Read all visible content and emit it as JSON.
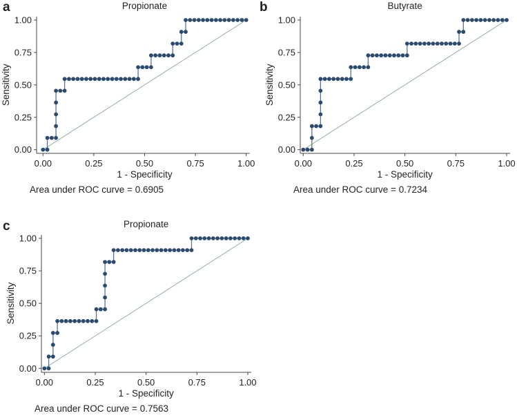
{
  "chart_data": [
    {
      "panel": "a",
      "type": "line",
      "title": "Propionate",
      "xlabel": "1 - Specificity",
      "ylabel": "Sensitivity",
      "xlim": [
        0,
        1
      ],
      "ylim": [
        0,
        1
      ],
      "xticks": [
        "0.00",
        "0.25",
        "0.50",
        "0.75",
        "1.00"
      ],
      "yticks": [
        "0.00",
        "0.25",
        "0.50",
        "0.75",
        "1.00"
      ],
      "annotation": "Area under ROC curve = 0.6905",
      "n_negative": 47,
      "n_positive": 11,
      "points_counts_fp_tp": [
        [
          0,
          0
        ],
        [
          1,
          0
        ],
        [
          1,
          1
        ],
        [
          2,
          1
        ],
        [
          3,
          1
        ],
        [
          3,
          2
        ],
        [
          3,
          3
        ],
        [
          3,
          4
        ],
        [
          3,
          5
        ],
        [
          4,
          5
        ],
        [
          5,
          5
        ],
        [
          5,
          6
        ],
        [
          6,
          6
        ],
        [
          7,
          6
        ],
        [
          8,
          6
        ],
        [
          9,
          6
        ],
        [
          10,
          6
        ],
        [
          11,
          6
        ],
        [
          12,
          6
        ],
        [
          13,
          6
        ],
        [
          14,
          6
        ],
        [
          15,
          6
        ],
        [
          16,
          6
        ],
        [
          17,
          6
        ],
        [
          18,
          6
        ],
        [
          19,
          6
        ],
        [
          20,
          6
        ],
        [
          21,
          6
        ],
        [
          22,
          6
        ],
        [
          22,
          7
        ],
        [
          23,
          7
        ],
        [
          24,
          7
        ],
        [
          25,
          7
        ],
        [
          25,
          8
        ],
        [
          26,
          8
        ],
        [
          27,
          8
        ],
        [
          28,
          8
        ],
        [
          29,
          8
        ],
        [
          30,
          8
        ],
        [
          30,
          9
        ],
        [
          31,
          9
        ],
        [
          32,
          9
        ],
        [
          32,
          10
        ],
        [
          33,
          10
        ],
        [
          33,
          11
        ],
        [
          34,
          11
        ],
        [
          35,
          11
        ],
        [
          36,
          11
        ],
        [
          37,
          11
        ],
        [
          38,
          11
        ],
        [
          39,
          11
        ],
        [
          40,
          11
        ],
        [
          41,
          11
        ],
        [
          42,
          11
        ],
        [
          43,
          11
        ],
        [
          44,
          11
        ],
        [
          45,
          11
        ],
        [
          46,
          11
        ],
        [
          47,
          11
        ]
      ],
      "reference_line": [
        [
          0,
          0
        ],
        [
          1,
          1
        ]
      ]
    },
    {
      "panel": "b",
      "type": "line",
      "title": "Butyrate",
      "xlabel": "1 - Specificity",
      "ylabel": "Sensitivity",
      "xlim": [
        0,
        1
      ],
      "ylim": [
        0,
        1
      ],
      "xticks": [
        "0.00",
        "0.25",
        "0.50",
        "0.75",
        "1.00"
      ],
      "yticks": [
        "0.00",
        "0.25",
        "0.50",
        "0.75",
        "1.00"
      ],
      "annotation": "Area under ROC curve = 0.7234",
      "n_negative": 47,
      "n_positive": 11,
      "points_counts_fp_tp": [
        [
          0,
          0
        ],
        [
          1,
          0
        ],
        [
          2,
          0
        ],
        [
          2,
          1
        ],
        [
          2,
          2
        ],
        [
          3,
          2
        ],
        [
          4,
          2
        ],
        [
          4,
          3
        ],
        [
          4,
          4
        ],
        [
          4,
          5
        ],
        [
          4,
          6
        ],
        [
          5,
          6
        ],
        [
          6,
          6
        ],
        [
          7,
          6
        ],
        [
          8,
          6
        ],
        [
          9,
          6
        ],
        [
          10,
          6
        ],
        [
          11,
          6
        ],
        [
          11,
          7
        ],
        [
          12,
          7
        ],
        [
          13,
          7
        ],
        [
          14,
          7
        ],
        [
          15,
          7
        ],
        [
          15,
          8
        ],
        [
          16,
          8
        ],
        [
          17,
          8
        ],
        [
          18,
          8
        ],
        [
          19,
          8
        ],
        [
          20,
          8
        ],
        [
          21,
          8
        ],
        [
          22,
          8
        ],
        [
          23,
          8
        ],
        [
          24,
          8
        ],
        [
          24,
          9
        ],
        [
          25,
          9
        ],
        [
          26,
          9
        ],
        [
          27,
          9
        ],
        [
          28,
          9
        ],
        [
          29,
          9
        ],
        [
          30,
          9
        ],
        [
          31,
          9
        ],
        [
          32,
          9
        ],
        [
          33,
          9
        ],
        [
          34,
          9
        ],
        [
          35,
          9
        ],
        [
          36,
          9
        ],
        [
          36,
          10
        ],
        [
          37,
          10
        ],
        [
          37,
          11
        ],
        [
          38,
          11
        ],
        [
          39,
          11
        ],
        [
          40,
          11
        ],
        [
          41,
          11
        ],
        [
          42,
          11
        ],
        [
          43,
          11
        ],
        [
          44,
          11
        ],
        [
          45,
          11
        ],
        [
          46,
          11
        ],
        [
          47,
          11
        ]
      ],
      "reference_line": [
        [
          0,
          0
        ],
        [
          1,
          1
        ]
      ]
    },
    {
      "panel": "c",
      "type": "line",
      "title": "Propionate",
      "xlabel": "1 - Specificity",
      "ylabel": "Sensitivity",
      "xlim": [
        0,
        1
      ],
      "ylim": [
        0,
        1
      ],
      "xticks": [
        "0.00",
        "0.25",
        "0.50",
        "0.75",
        "1.00"
      ],
      "yticks": [
        "0.00",
        "0.25",
        "0.50",
        "0.75",
        "1.00"
      ],
      "annotation": "Area under ROC curve = 0.7563",
      "n_negative": 47,
      "n_positive": 11,
      "points_counts_fp_tp": [
        [
          0,
          0
        ],
        [
          1,
          0
        ],
        [
          1,
          1
        ],
        [
          2,
          1
        ],
        [
          2,
          2
        ],
        [
          2,
          3
        ],
        [
          3,
          3
        ],
        [
          3,
          4
        ],
        [
          4,
          4
        ],
        [
          5,
          4
        ],
        [
          6,
          4
        ],
        [
          7,
          4
        ],
        [
          8,
          4
        ],
        [
          9,
          4
        ],
        [
          10,
          4
        ],
        [
          11,
          4
        ],
        [
          12,
          4
        ],
        [
          12,
          5
        ],
        [
          13,
          5
        ],
        [
          14,
          5
        ],
        [
          14,
          6
        ],
        [
          14,
          7
        ],
        [
          14,
          8
        ],
        [
          14,
          9
        ],
        [
          15,
          9
        ],
        [
          16,
          9
        ],
        [
          16,
          10
        ],
        [
          17,
          10
        ],
        [
          18,
          10
        ],
        [
          19,
          10
        ],
        [
          20,
          10
        ],
        [
          21,
          10
        ],
        [
          22,
          10
        ],
        [
          23,
          10
        ],
        [
          24,
          10
        ],
        [
          25,
          10
        ],
        [
          26,
          10
        ],
        [
          27,
          10
        ],
        [
          28,
          10
        ],
        [
          29,
          10
        ],
        [
          30,
          10
        ],
        [
          31,
          10
        ],
        [
          32,
          10
        ],
        [
          33,
          10
        ],
        [
          34,
          10
        ],
        [
          34,
          11
        ],
        [
          35,
          11
        ],
        [
          36,
          11
        ],
        [
          37,
          11
        ],
        [
          38,
          11
        ],
        [
          39,
          11
        ],
        [
          40,
          11
        ],
        [
          41,
          11
        ],
        [
          42,
          11
        ],
        [
          43,
          11
        ],
        [
          44,
          11
        ],
        [
          45,
          11
        ],
        [
          46,
          11
        ],
        [
          47,
          11
        ]
      ],
      "reference_line": [
        [
          0,
          0
        ],
        [
          1,
          1
        ]
      ]
    }
  ],
  "colors": {
    "curve": "#2b4a6f",
    "step_line": "#5a7394",
    "reference": "#8aa89a",
    "axis": "#444444"
  }
}
